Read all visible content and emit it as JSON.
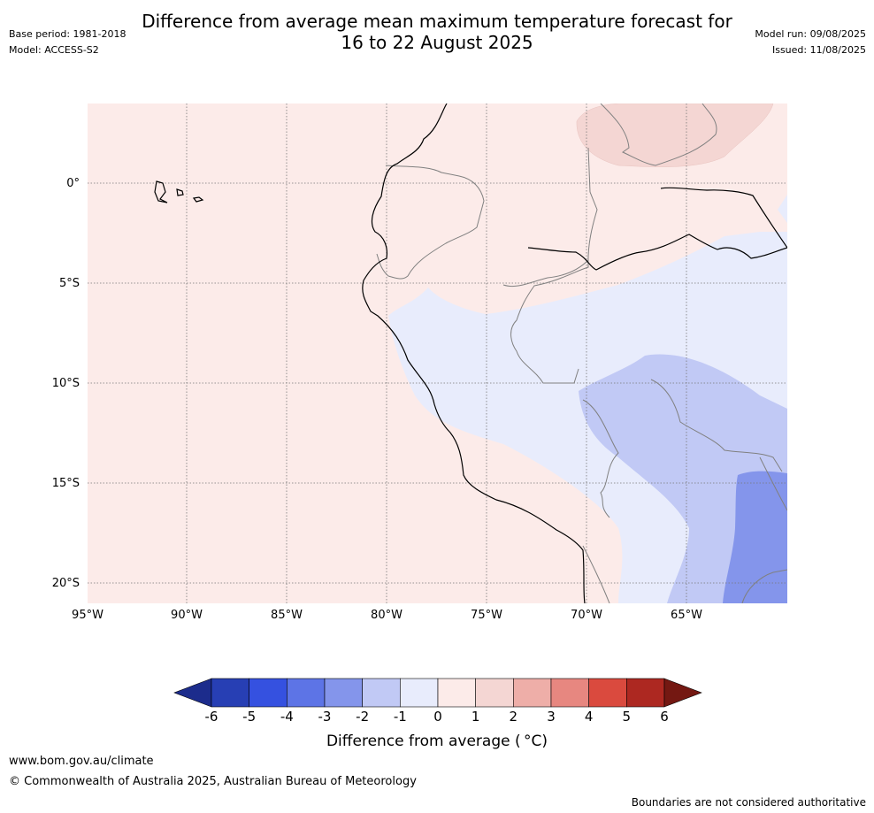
{
  "header": {
    "title_line1": "Difference from average mean maximum temperature forecast for",
    "title_line2": "16 to 22 August 2025",
    "base_period": "Base period: 1981-2018",
    "model": "Model: ACCESS-S2",
    "model_run": "Model run: 09/08/2025",
    "issued": "Issued: 11/08/2025"
  },
  "map": {
    "lat_labels": [
      "0°",
      "5°S",
      "10°S",
      "15°S",
      "20°S"
    ],
    "lon_labels": [
      "95°W",
      "90°W",
      "85°W",
      "80°W",
      "75°W",
      "70°W",
      "65°W"
    ],
    "gridlines": true
  },
  "colorbar": {
    "ticks": [
      "-6",
      "-5",
      "-4",
      "-3",
      "-2",
      "-1",
      "0",
      "1",
      "2",
      "3",
      "4",
      "5",
      "6"
    ],
    "colors": [
      "#1c2c8c",
      "#273fb4",
      "#3551e0",
      "#5d74e6",
      "#8495eb",
      "#c1c9f5",
      "#e8ecfc",
      "#fcebe9",
      "#f4d6d3",
      "#eeaea8",
      "#e78780",
      "#da4a3e",
      "#ad2821",
      "#741812"
    ],
    "label": "Difference from average ( °C)"
  },
  "footer": {
    "url": "www.bom.gov.au/climate",
    "copyright": "© Commonwealth of Australia 2025, Australian Bureau of Meteorology",
    "note": "Boundaries are not considered authoritative"
  }
}
